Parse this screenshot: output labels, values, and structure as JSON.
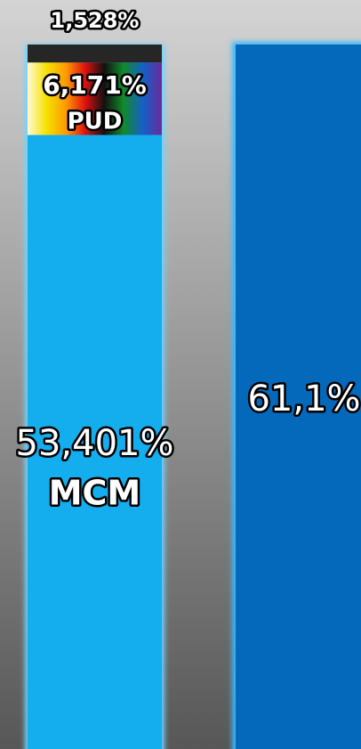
{
  "chart_data": {
    "type": "stacked-bar",
    "stack": [
      {
        "name": "MCM",
        "color": "#14aeee",
        "values": [
          53.401
        ],
        "value_labels": [
          "53,401%"
        ]
      },
      {
        "name": "PUD",
        "color": [
          "#fffbd0",
          "#f5e000",
          "#ff9a00",
          "#e01010",
          "#111111",
          "#138a2a",
          "#1460c8",
          "#6a2a9a"
        ],
        "values": [
          6.171
        ],
        "value_labels": [
          "6,171%"
        ]
      },
      {
        "color": "#262626",
        "values": [
          1.528
        ],
        "value_labels": [
          "1,528%"
        ]
      }
    ],
    "total": {
      "color": "#0468bb",
      "values": [
        61.1
      ],
      "value_labels": [
        "61,1%"
      ]
    },
    "equals_sign": "="
  }
}
